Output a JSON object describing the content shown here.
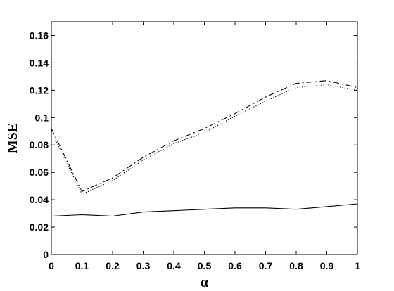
{
  "chart_data": {
    "type": "line",
    "title": "",
    "xlabel": "α",
    "ylabel": "MSE",
    "xlim": [
      0,
      1
    ],
    "ylim": [
      0,
      0.17
    ],
    "x_ticks": [
      "0",
      "0.1",
      "0.2",
      "0.3",
      "0.4",
      "0.5",
      "0.6",
      "0.7",
      "0.8",
      "0.9",
      "1"
    ],
    "y_ticks": [
      "0",
      "0.02",
      "0.04",
      "0.06",
      "0.08",
      "0.1",
      "0.12",
      "0.14",
      "0.16"
    ],
    "grid": false,
    "legend": "none",
    "x": [
      0,
      0.1,
      0.2,
      0.3,
      0.4,
      0.5,
      0.6,
      0.7,
      0.8,
      0.9,
      1.0
    ],
    "series": [
      {
        "style": "solid",
        "values": [
          0.028,
          0.029,
          0.028,
          0.031,
          0.032,
          0.033,
          0.034,
          0.034,
          0.033,
          0.035,
          0.037
        ]
      },
      {
        "style": "dashed",
        "values": [
          0.092,
          0.046,
          0.056,
          0.071,
          0.083,
          0.092,
          0.103,
          0.115,
          0.125,
          0.127,
          0.122
        ]
      },
      {
        "style": "dotted",
        "values": [
          0.09,
          0.044,
          0.054,
          0.069,
          0.081,
          0.089,
          0.101,
          0.112,
          0.122,
          0.124,
          0.12
        ]
      }
    ]
  }
}
